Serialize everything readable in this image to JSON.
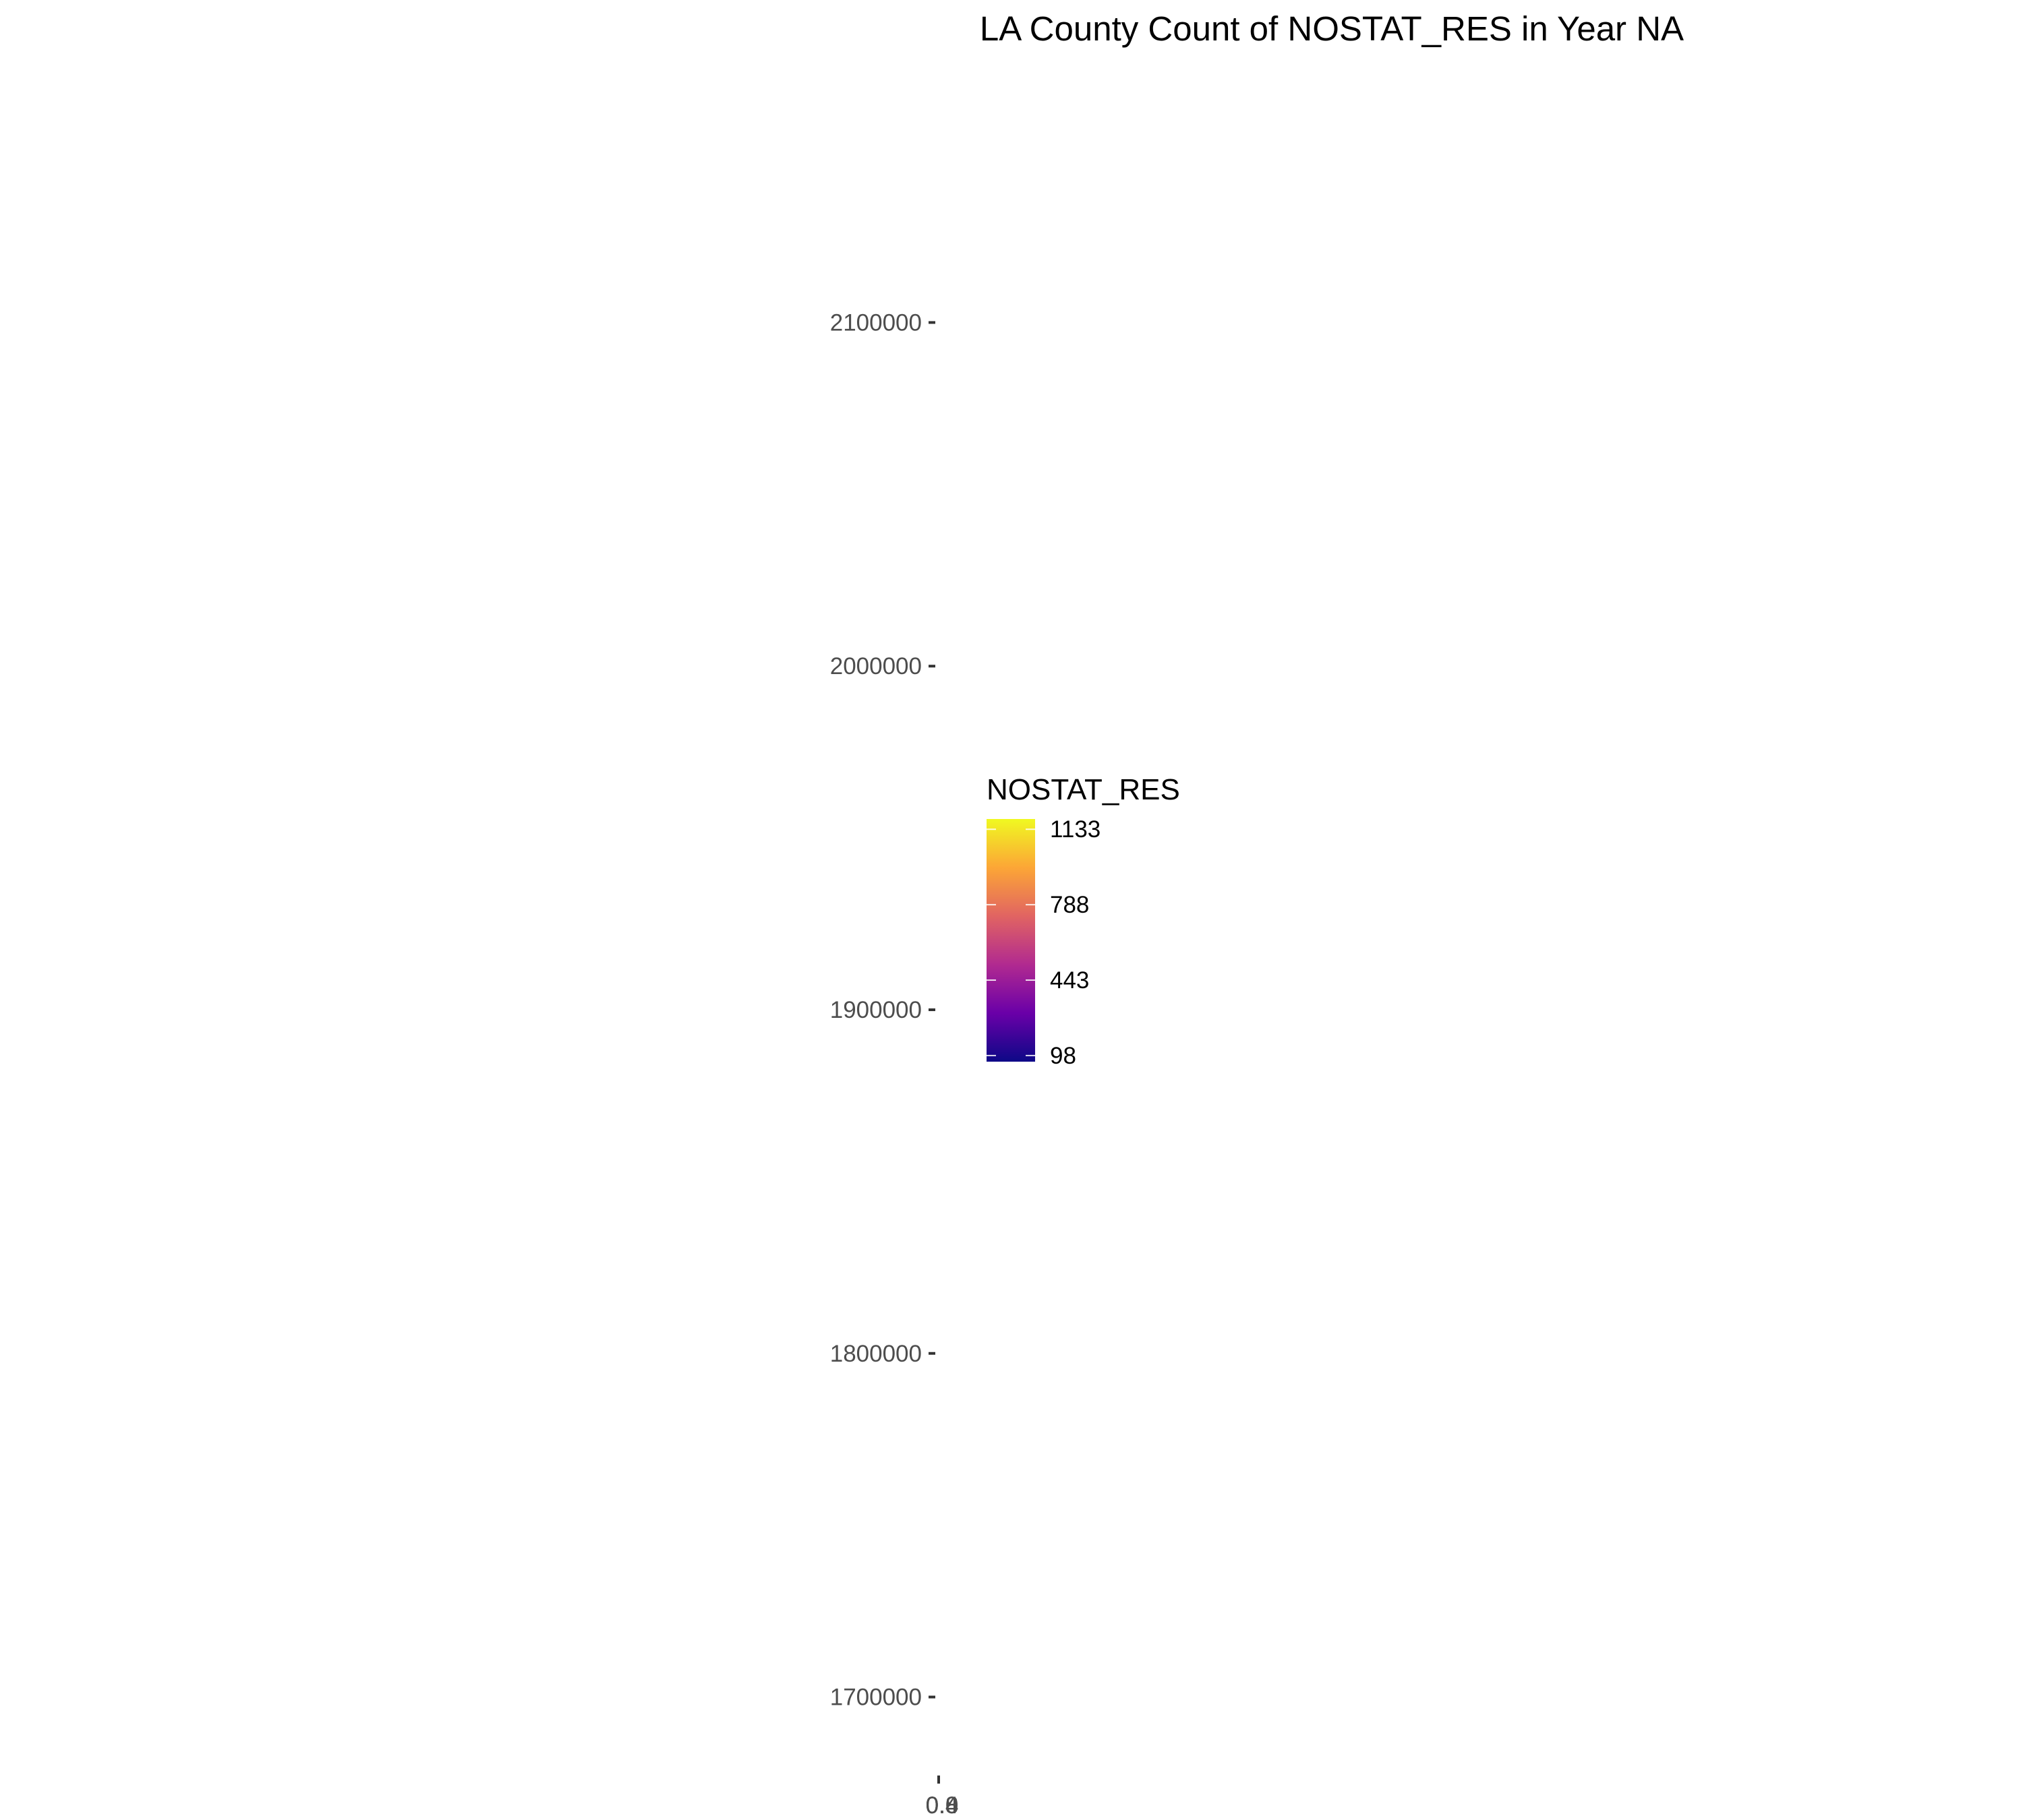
{
  "chart_data": {
    "type": "heatmap",
    "title": "LA County Count of NOSTAT_RES in Year NA",
    "xlabel": "",
    "ylabel": "",
    "y_axis": {
      "range": [
        1675000,
        2135000
      ],
      "ticks": [
        {
          "value": 2100000,
          "label": "2100000"
        },
        {
          "value": 2000000,
          "label": "2000000"
        },
        {
          "value": 1900000,
          "label": "1900000"
        },
        {
          "value": 1800000,
          "label": "1800000"
        },
        {
          "value": 1700000,
          "label": "1700000"
        }
      ]
    },
    "x_axis": {
      "ticks": [
        {
          "value": 0,
          "label": "0.0"
        },
        {
          "value": 0.4,
          "label": "0.4"
        },
        {
          "value": 0.8,
          "label": "0.8"
        }
      ]
    },
    "grid": false,
    "legend": {
      "title": "NOSTAT_RES",
      "position": "center",
      "range": [
        70,
        1180
      ],
      "breaks": [
        {
          "value": 1133,
          "label": "1133"
        },
        {
          "value": 788,
          "label": "788"
        },
        {
          "value": 443,
          "label": "443"
        },
        {
          "value": 98,
          "label": "98"
        }
      ],
      "colorscale": [
        "#0d0887",
        "#6a00a8",
        "#b12a90",
        "#e16462",
        "#fca636",
        "#f0f921"
      ]
    },
    "values": []
  }
}
